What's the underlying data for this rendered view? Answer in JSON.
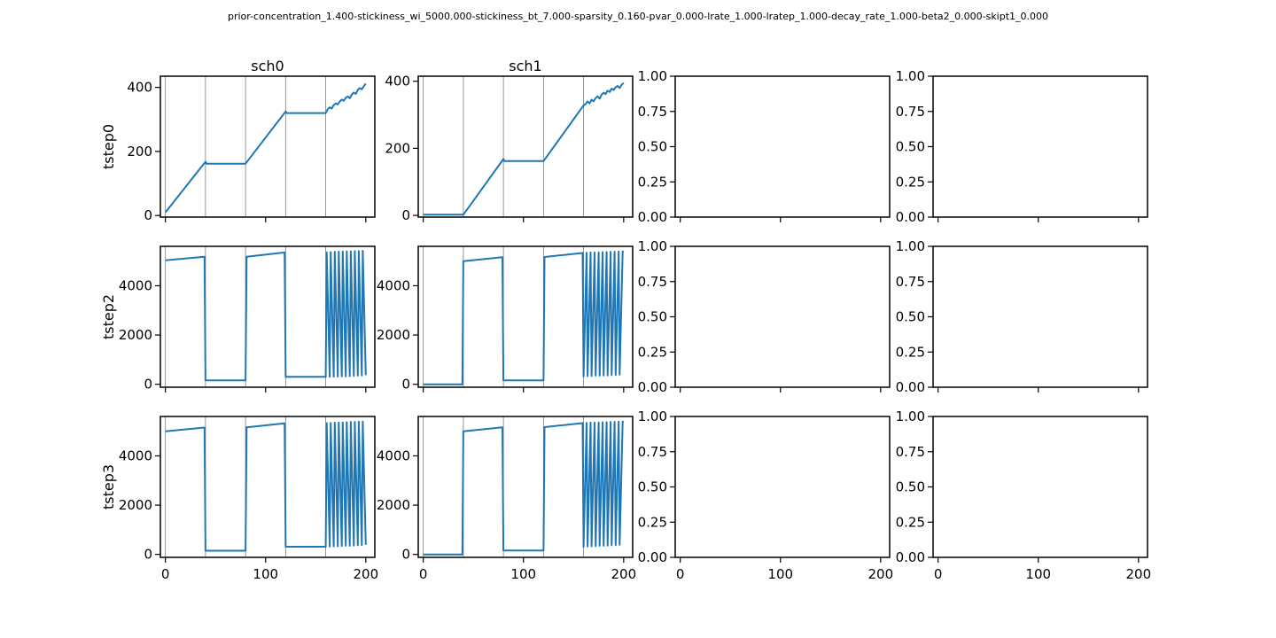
{
  "figure": {
    "suptitle": "prior-concentration_1.400-stickiness_wi_5000.000-stickiness_bt_7.000-sparsity_0.160-pvar_0.000-lrate_1.000-lratep_1.000-decay_rate_1.000-beta2_0.000-skipt1_0.000",
    "col_titles": [
      "sch0",
      "sch1",
      "",
      ""
    ],
    "row_labels": [
      "tstep0",
      "tstep2",
      "tstep3"
    ],
    "x_ticks": [
      0,
      100,
      200
    ],
    "series_color": "#1f77b4"
  },
  "chart_data": [
    {
      "type": "line",
      "panel": "tstep0/sch0",
      "xlim": [
        -5,
        209
      ],
      "ylim": [
        -5,
        435
      ],
      "y_ticks": [
        0,
        200,
        400
      ],
      "vlines": [
        0,
        40,
        80,
        120,
        160
      ],
      "x": [
        0,
        40,
        41,
        80,
        120,
        121,
        160,
        162,
        164,
        166,
        168,
        170,
        172,
        174,
        176,
        178,
        180,
        182,
        184,
        186,
        188,
        190,
        192,
        194,
        196,
        198,
        200
      ],
      "y": [
        10,
        168,
        162,
        162,
        325,
        320,
        320,
        332,
        338,
        334,
        345,
        350,
        347,
        356,
        362,
        358,
        368,
        372,
        366,
        378,
        384,
        380,
        392,
        398,
        394,
        404,
        412
      ]
    },
    {
      "type": "line",
      "panel": "tstep0/sch1",
      "xlim": [
        -5,
        209
      ],
      "ylim": [
        -5,
        415
      ],
      "y_ticks": [
        0,
        200,
        400
      ],
      "vlines": [
        0,
        40,
        80,
        120,
        160
      ],
      "x": [
        0,
        40,
        80,
        81,
        120,
        160,
        162,
        164,
        166,
        168,
        170,
        172,
        174,
        176,
        178,
        180,
        182,
        184,
        186,
        188,
        190,
        192,
        194,
        196,
        198,
        200
      ],
      "y": [
        2,
        2,
        168,
        162,
        162,
        328,
        332,
        340,
        334,
        345,
        340,
        350,
        355,
        348,
        360,
        366,
        362,
        372,
        368,
        378,
        374,
        382,
        386,
        380,
        390,
        395
      ]
    },
    {
      "type": "line",
      "panel": "tstep2/sch0",
      "xlim": [
        -5,
        209
      ],
      "ylim": [
        -120,
        5600
      ],
      "y_ticks": [
        0,
        2000,
        4000
      ],
      "vlines": [
        0,
        40,
        80,
        120,
        160
      ],
      "x": [
        0,
        39,
        40,
        80,
        81,
        119,
        120,
        160,
        161,
        164,
        165,
        168,
        169,
        172,
        173,
        176,
        177,
        180,
        181,
        184,
        185,
        188,
        189,
        192,
        193,
        196,
        197,
        200
      ],
      "y": [
        5030,
        5180,
        160,
        160,
        5180,
        5350,
        300,
        300,
        5360,
        300,
        5370,
        310,
        5380,
        310,
        5390,
        320,
        5390,
        320,
        5400,
        330,
        5400,
        340,
        5410,
        350,
        5410,
        360,
        5420,
        370
      ]
    },
    {
      "type": "line",
      "panel": "tstep2/sch1",
      "xlim": [
        -5,
        209
      ],
      "ylim": [
        -120,
        5600
      ],
      "y_ticks": [
        0,
        2000,
        4000
      ],
      "vlines": [
        0,
        40,
        80,
        120,
        160
      ],
      "x": [
        0,
        39,
        40,
        79,
        80,
        120,
        121,
        159,
        160,
        163,
        164,
        167,
        168,
        171,
        172,
        175,
        176,
        179,
        180,
        183,
        184,
        187,
        188,
        191,
        192,
        195,
        196,
        199,
        200
      ],
      "y": [
        0,
        0,
        5000,
        5160,
        160,
        160,
        5170,
        5330,
        320,
        5340,
        330,
        5350,
        340,
        5350,
        350,
        5360,
        350,
        5370,
        360,
        5370,
        360,
        5380,
        370,
        5380,
        380,
        5390,
        390,
        5390,
        5390
      ]
    },
    {
      "type": "line",
      "panel": "tstep3/sch0",
      "xlim": [
        -5,
        209
      ],
      "ylim": [
        -120,
        5600
      ],
      "y_ticks": [
        0,
        2000,
        4000
      ],
      "vlines": [
        0,
        40,
        80,
        120,
        160
      ],
      "x": [
        0,
        39,
        40,
        80,
        81,
        119,
        120,
        160,
        161,
        164,
        165,
        168,
        169,
        172,
        173,
        176,
        177,
        180,
        181,
        184,
        185,
        188,
        189,
        192,
        193,
        196,
        197,
        200
      ],
      "y": [
        5000,
        5150,
        150,
        150,
        5160,
        5320,
        310,
        310,
        5330,
        320,
        5340,
        330,
        5350,
        330,
        5360,
        340,
        5360,
        350,
        5370,
        350,
        5380,
        360,
        5380,
        370,
        5390,
        380,
        5390,
        390
      ]
    },
    {
      "type": "line",
      "panel": "tstep3/sch1",
      "xlim": [
        -5,
        209
      ],
      "ylim": [
        -120,
        5600
      ],
      "y_ticks": [
        0,
        2000,
        4000
      ],
      "vlines": [
        0,
        40,
        80,
        120,
        160
      ],
      "x": [
        0,
        39,
        40,
        79,
        80,
        120,
        121,
        159,
        160,
        163,
        164,
        167,
        168,
        171,
        172,
        175,
        176,
        179,
        180,
        183,
        184,
        187,
        188,
        191,
        192,
        195,
        196,
        199,
        200
      ],
      "y": [
        0,
        0,
        5000,
        5160,
        160,
        160,
        5170,
        5330,
        310,
        5340,
        320,
        5350,
        330,
        5350,
        340,
        5360,
        350,
        5370,
        350,
        5370,
        360,
        5380,
        370,
        5380,
        380,
        5390,
        390,
        5390,
        5390
      ]
    },
    {
      "type": "line",
      "panel": "tstep0/col2",
      "xlim": [
        -5,
        209
      ],
      "ylim": [
        0,
        1
      ],
      "y_ticks": [
        "0.00",
        "0.25",
        "0.50",
        "0.75",
        "1.00"
      ],
      "x": [],
      "y": []
    },
    {
      "type": "line",
      "panel": "tstep0/col3",
      "xlim": [
        -5,
        209
      ],
      "ylim": [
        0,
        1
      ],
      "y_ticks": [
        "0.00",
        "0.25",
        "0.50",
        "0.75",
        "1.00"
      ],
      "x": [],
      "y": []
    },
    {
      "type": "line",
      "panel": "tstep2/col2",
      "xlim": [
        -5,
        209
      ],
      "ylim": [
        0,
        1
      ],
      "y_ticks": [
        "0.00",
        "0.25",
        "0.50",
        "0.75",
        "1.00"
      ],
      "x": [],
      "y": []
    },
    {
      "type": "line",
      "panel": "tstep2/col3",
      "xlim": [
        -5,
        209
      ],
      "ylim": [
        0,
        1
      ],
      "y_ticks": [
        "0.00",
        "0.25",
        "0.50",
        "0.75",
        "1.00"
      ],
      "x": [],
      "y": []
    },
    {
      "type": "line",
      "panel": "tstep3/col2",
      "xlim": [
        -5,
        209
      ],
      "ylim": [
        0,
        1
      ],
      "y_ticks": [
        "0.00",
        "0.25",
        "0.50",
        "0.75",
        "1.00"
      ],
      "x": [],
      "y": []
    },
    {
      "type": "line",
      "panel": "tstep3/col3",
      "xlim": [
        -5,
        209
      ],
      "ylim": [
        0,
        1
      ],
      "y_ticks": [
        "0.00",
        "0.25",
        "0.50",
        "0.75",
        "1.00"
      ],
      "x": [],
      "y": []
    }
  ]
}
